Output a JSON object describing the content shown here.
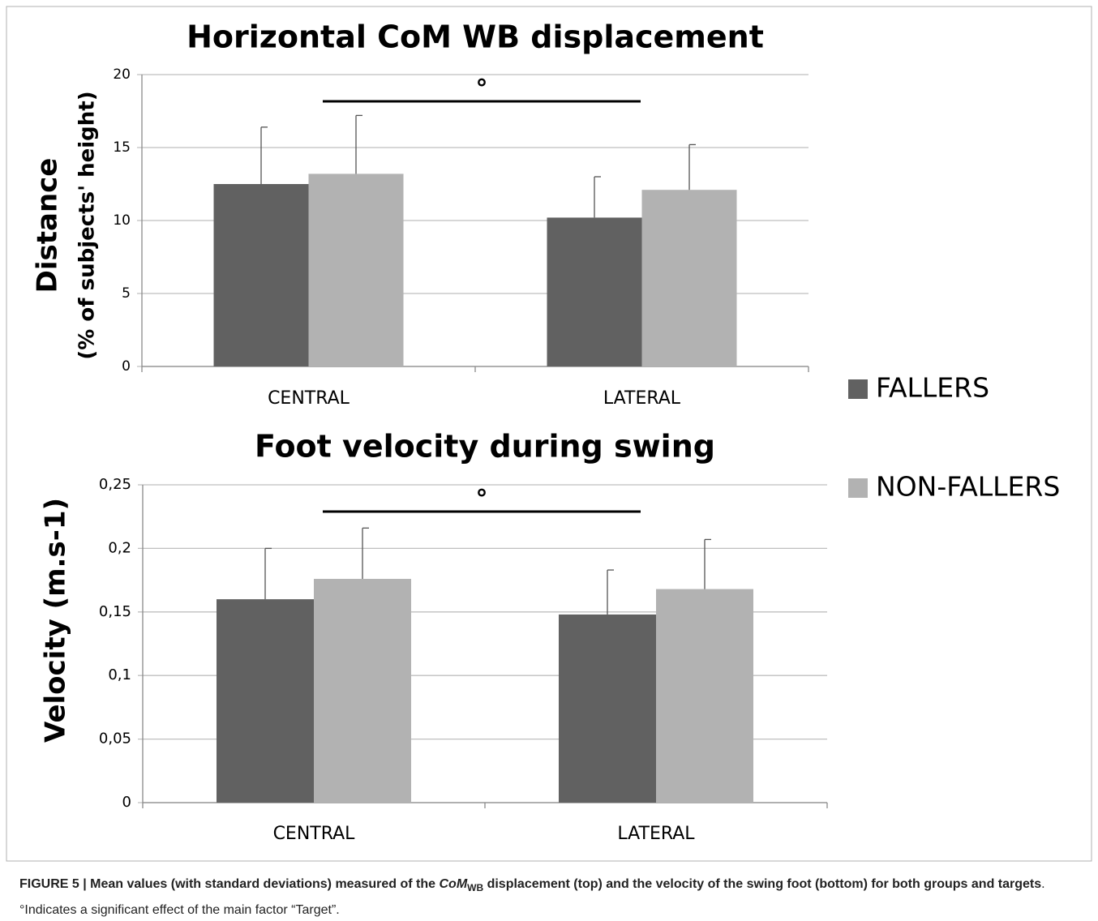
{
  "chart_data": [
    {
      "type": "bar",
      "title": "Horizontal CoM WB displacement",
      "y_label": [
        "Distance",
        "(% of subjects' height)"
      ],
      "categories": [
        "CENTRAL",
        "LATERAL"
      ],
      "series": [
        {
          "name": "FALLERS",
          "color": "#616161",
          "values": [
            12.5,
            10.2
          ],
          "errors": [
            3.9,
            2.8
          ]
        },
        {
          "name": "NON-FALLERS",
          "color": "#b2b2b2",
          "values": [
            13.2,
            12.1
          ],
          "errors": [
            4.0,
            3.1
          ]
        }
      ],
      "ylim": [
        0,
        20
      ],
      "yticks": [
        0,
        5,
        10,
        15,
        20
      ],
      "grid": true,
      "legend": "right",
      "annotation": "°"
    },
    {
      "type": "bar",
      "title": "Foot velocity during swing",
      "y_label": [
        "Velocity (m.s-1)"
      ],
      "categories": [
        "CENTRAL",
        "LATERAL"
      ],
      "series": [
        {
          "color": "#616161",
          "values": [
            0.16,
            0.148
          ],
          "errors": [
            0.04,
            0.035
          ]
        },
        {
          "color": "#b2b2b2",
          "values": [
            0.176,
            0.168
          ],
          "errors": [
            0.04,
            0.039
          ]
        }
      ],
      "ylim": [
        0,
        0.25
      ],
      "yticks": [
        0,
        {
          "value": 0.05,
          "label": "0,05"
        },
        {
          "value": 0.1,
          "label": "0,1"
        },
        {
          "value": 0.15,
          "label": "0,15"
        },
        {
          "value": 0.2,
          "label": "0,2"
        },
        {
          "value": 0.25,
          "label": "0,25"
        }
      ],
      "grid": true,
      "annotation": "°"
    }
  ],
  "caption": {
    "bold_1": "FIGURE 5 | Mean values (with standard deviations) measured of the ",
    "italic": "CoM",
    "subscript": "WB",
    "bold_2": " displacement (top) and the velocity of the swing foot (bottom) for both groups and targets",
    "rest": ". °Indicates a significant effect of the main factor “Target”."
  }
}
